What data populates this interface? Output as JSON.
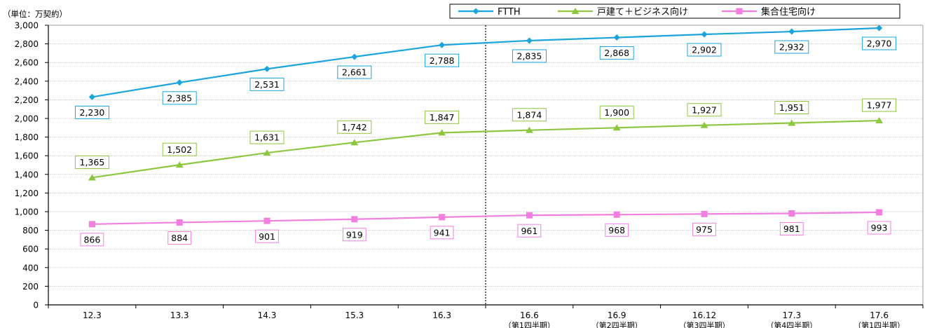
{
  "chart_data": {
    "type": "line",
    "unit_label": "（単位：万契約）",
    "categories": [
      "12.3",
      "13.3",
      "14.3",
      "15.3",
      "16.3",
      "16.6",
      "16.9",
      "16.12",
      "17.3",
      "17.6"
    ],
    "category_sublabels": [
      "",
      "",
      "",
      "",
      "",
      "（第1四半期）",
      "（第2四半期）",
      "（第3四半期）",
      "（第4四半期）",
      "（第1四半期）"
    ],
    "ylim": [
      0,
      3000
    ],
    "yticks": [
      0,
      200,
      400,
      600,
      800,
      1000,
      1200,
      1400,
      1600,
      1800,
      2000,
      2200,
      2400,
      2600,
      2800,
      3000
    ],
    "ytick_labels": [
      "0",
      "200",
      "400",
      "600",
      "800",
      "1,000",
      "1,200",
      "1,400",
      "1,600",
      "1,800",
      "2,000",
      "2,200",
      "2,400",
      "2,600",
      "2,800",
      "3,000"
    ],
    "grid": "horizontal",
    "divider_after_category": "16.3",
    "legend_position": "top-right",
    "series": [
      {
        "name": "FTTH",
        "color": "#1aa3dc",
        "marker": "diamond",
        "label_position": "below",
        "values": [
          2230,
          2385,
          2531,
          2661,
          2788,
          2835,
          2868,
          2902,
          2932,
          2970
        ],
        "labels": [
          "2,230",
          "2,385",
          "2,531",
          "2,661",
          "2,788",
          "2,835",
          "2,868",
          "2,902",
          "2,932",
          "2,970"
        ]
      },
      {
        "name": "戸建て＋ビジネス向け",
        "color": "#8dc63f",
        "marker": "triangle",
        "label_position": "above",
        "values": [
          1365,
          1502,
          1631,
          1742,
          1847,
          1874,
          1900,
          1927,
          1951,
          1977
        ],
        "labels": [
          "1,365",
          "1,502",
          "1,631",
          "1,742",
          "1,847",
          "1,874",
          "1,900",
          "1,927",
          "1,951",
          "1,977"
        ]
      },
      {
        "name": "集合住宅向け",
        "color": "#f27ee0",
        "marker": "square",
        "label_position": "below",
        "values": [
          866,
          884,
          901,
          919,
          941,
          961,
          968,
          975,
          981,
          993
        ],
        "labels": [
          "866",
          "884",
          "901",
          "919",
          "941",
          "961",
          "968",
          "975",
          "981",
          "993"
        ]
      }
    ]
  }
}
